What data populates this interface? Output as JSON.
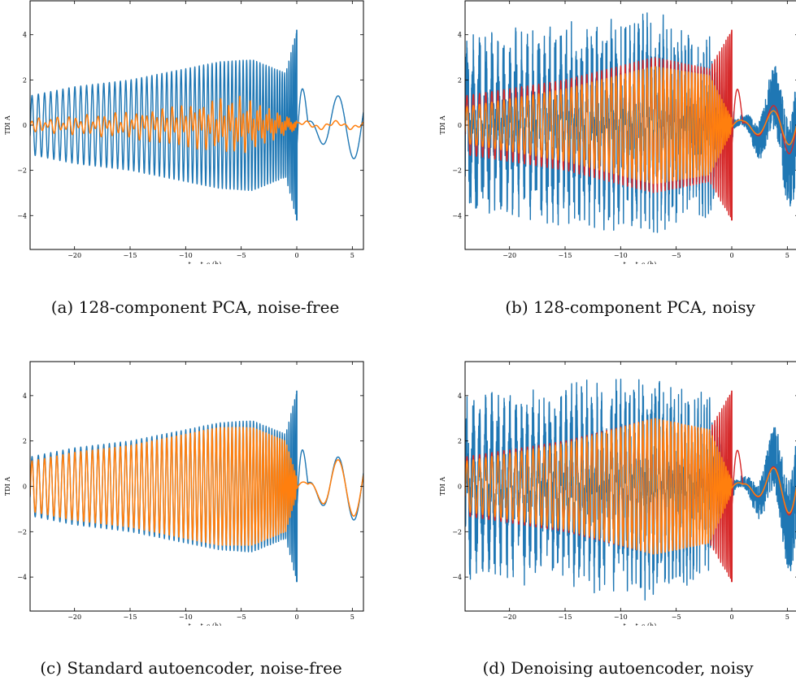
{
  "figure": {
    "panels": [
      {
        "id": "a",
        "caption": "(a) 128-component PCA, noise-free",
        "has_noisy": false
      },
      {
        "id": "b",
        "caption": "(b) 128-component PCA, noisy",
        "has_noisy": true
      },
      {
        "id": "c",
        "caption": "(c) Standard autoencoder, noise-free",
        "has_noisy": false
      },
      {
        "id": "d",
        "caption": "(d) Denoising autoencoder, noisy",
        "has_noisy": true
      }
    ]
  },
  "colors": {
    "blue": "#1f77b4",
    "orange": "#ff7f0e",
    "red": "#d62728"
  },
  "chart_data": [
    {
      "type": "line",
      "panel": "a",
      "xlabel": "t − t_c (h)",
      "ylabel": "TDI A",
      "xlim": [
        -24,
        6
      ],
      "ylim": [
        -5.5,
        5.5
      ],
      "xticks": [
        -20,
        -15,
        -10,
        -5,
        0,
        5
      ],
      "xtick_labels": [
        "−20",
        "−15",
        "−10",
        "−5",
        "0",
        "5"
      ],
      "yticks": [
        -4,
        -2,
        0,
        2,
        4
      ],
      "ytick_labels": [
        "−4",
        "−2",
        "0",
        "2",
        "4"
      ],
      "grid": false,
      "series": [
        {
          "role": "true",
          "color": "blue",
          "envelope_x": [
            -24,
            -20,
            -15,
            -10,
            -7,
            -4,
            -1,
            0,
            1,
            3,
            6
          ],
          "envelope_amp": [
            1.3,
            1.7,
            2.0,
            2.5,
            2.8,
            2.9,
            2.3,
            4.2,
            0.15,
            1.2,
            1.6
          ]
        },
        {
          "role": "reconstruction",
          "color": "orange",
          "envelope_x": [
            -24,
            -15,
            -10,
            -5,
            0,
            6
          ],
          "envelope_amp": [
            0.3,
            0.6,
            1.0,
            1.3,
            0.2,
            0.2
          ]
        }
      ]
    },
    {
      "type": "line",
      "panel": "b",
      "xlabel": "t − t_c (h)",
      "ylabel": "TDI A",
      "xlim": [
        -24,
        6
      ],
      "ylim": [
        -5.5,
        5.5
      ],
      "xticks": [
        -20,
        -15,
        -10,
        -5,
        0,
        5
      ],
      "xtick_labels": [
        "−20",
        "−15",
        "−10",
        "−5",
        "0",
        "5"
      ],
      "yticks": [
        -4,
        -2,
        0,
        2,
        4
      ],
      "ytick_labels": [
        "−4",
        "−2",
        "0",
        "2",
        "4"
      ],
      "grid": false,
      "series": [
        {
          "role": "noisy",
          "color": "blue",
          "envelope_x": [
            -24,
            -15,
            -7,
            -2,
            0,
            1,
            6
          ],
          "envelope_amp": [
            3.5,
            3.9,
            4.3,
            3.5,
            1.0,
            0.3,
            3.8
          ]
        },
        {
          "role": "true",
          "color": "red",
          "envelope_x": [
            -24,
            -15,
            -7,
            -2,
            0,
            1,
            6
          ],
          "envelope_amp": [
            1.3,
            2.0,
            3.0,
            2.5,
            4.2,
            0.1,
            1.5
          ]
        },
        {
          "role": "reconstruction",
          "color": "orange",
          "envelope_x": [
            -24,
            -15,
            -7,
            -2,
            0,
            1,
            6
          ],
          "envelope_amp": [
            0.8,
            1.6,
            2.6,
            2.2,
            0.3,
            0.2,
            1.0
          ]
        }
      ]
    },
    {
      "type": "line",
      "panel": "c",
      "xlabel": "t − t_c (h)",
      "ylabel": "TDI A",
      "xlim": [
        -24,
        6
      ],
      "ylim": [
        -5.5,
        5.5
      ],
      "xticks": [
        -20,
        -15,
        -10,
        -5,
        0,
        5
      ],
      "xtick_labels": [
        "−20",
        "−15",
        "−10",
        "−5",
        "0",
        "5"
      ],
      "yticks": [
        -4,
        -2,
        0,
        2,
        4
      ],
      "ytick_labels": [
        "−4",
        "−2",
        "0",
        "2",
        "4"
      ],
      "grid": false,
      "series": [
        {
          "role": "true",
          "color": "blue",
          "envelope_x": [
            -24,
            -20,
            -15,
            -10,
            -7,
            -4,
            -1,
            0,
            1,
            3,
            6
          ],
          "envelope_amp": [
            1.3,
            1.7,
            2.0,
            2.5,
            2.8,
            2.9,
            2.3,
            4.2,
            0.15,
            1.2,
            1.6
          ]
        },
        {
          "role": "reconstruction",
          "color": "orange",
          "envelope_x": [
            -24,
            -20,
            -15,
            -10,
            -7,
            -4,
            -1,
            0,
            1,
            3,
            6
          ],
          "envelope_amp": [
            1.1,
            1.5,
            1.8,
            2.3,
            2.6,
            2.6,
            2.0,
            0.4,
            0.1,
            1.1,
            1.4
          ]
        }
      ]
    },
    {
      "type": "line",
      "panel": "d",
      "xlabel": "t − t_c (h)",
      "ylabel": "TDI A",
      "xlim": [
        -24,
        6
      ],
      "ylim": [
        -5.5,
        5.5
      ],
      "xticks": [
        -20,
        -15,
        -10,
        -5,
        0,
        5
      ],
      "xtick_labels": [
        "−20",
        "−15",
        "−10",
        "−5",
        "0",
        "5"
      ],
      "yticks": [
        -4,
        -2,
        0,
        2,
        4
      ],
      "ytick_labels": [
        "−4",
        "−2",
        "0",
        "2",
        "4"
      ],
      "grid": false,
      "series": [
        {
          "role": "noisy",
          "color": "blue",
          "envelope_x": [
            -24,
            -15,
            -7,
            -2,
            0,
            1,
            6
          ],
          "envelope_amp": [
            3.5,
            3.9,
            4.3,
            3.5,
            1.0,
            0.3,
            3.8
          ]
        },
        {
          "role": "true",
          "color": "red",
          "envelope_x": [
            -24,
            -15,
            -7,
            -2,
            0,
            1,
            6
          ],
          "envelope_amp": [
            1.3,
            2.0,
            3.0,
            2.5,
            4.2,
            0.1,
            1.5
          ]
        },
        {
          "role": "reconstruction",
          "color": "orange",
          "envelope_x": [
            -24,
            -15,
            -7,
            -2,
            0,
            1,
            6
          ],
          "envelope_amp": [
            1.1,
            1.9,
            3.0,
            2.5,
            0.3,
            0.1,
            1.4
          ]
        }
      ]
    }
  ]
}
